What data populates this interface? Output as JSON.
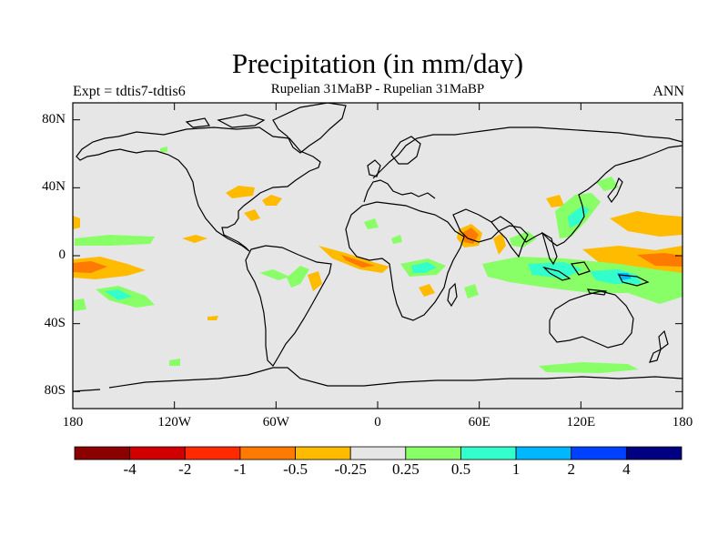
{
  "title": "Precipitation (in mm/day)",
  "subtitle": "Rupelian  31MaBP - Rupelian  31MaBP",
  "left_label": "Expt = tdtis7-tdtis6",
  "right_label": "ANN",
  "y_ticks": [
    "80N",
    "40N",
    "0",
    "40S",
    "80S"
  ],
  "x_ticks": [
    "180",
    "120W",
    "60W",
    "0",
    "60E",
    "120E",
    "180"
  ],
  "colorbar": {
    "labels": [
      "-4",
      "-2",
      "-1",
      "-0.5",
      "-0.25",
      "0.25",
      "0.5",
      "1",
      "2",
      "4"
    ],
    "colors": [
      "#8b0000",
      "#d10000",
      "#ff2a00",
      "#ff7a00",
      "#ffbb00",
      "#e6e6e6",
      "#88ff66",
      "#33ffcc",
      "#00b8ff",
      "#0040ff",
      "#000080"
    ]
  },
  "map_colors": {
    "background": "#e6e6e6",
    "orange_light": "#ffbb00",
    "orange_mid": "#ff7a00",
    "green": "#88ff66",
    "teal": "#33ffcc"
  },
  "chart_data": {
    "type": "heatmap",
    "title": "Precipitation (in mm/day)",
    "subtitle": "Rupelian  31MaBP - Rupelian  31MaBP",
    "xlim": [
      -180,
      180
    ],
    "ylim": [
      -90,
      90
    ],
    "x_ticks": [
      -180,
      -120,
      -60,
      0,
      60,
      120,
      180
    ],
    "y_ticks": [
      80,
      40,
      0,
      -40,
      -80
    ],
    "contour_levels": [
      -4,
      -2,
      -1,
      -0.5,
      -0.25,
      0.25,
      0.5,
      1,
      2,
      4
    ],
    "field": "annual mean precipitation difference"
  }
}
